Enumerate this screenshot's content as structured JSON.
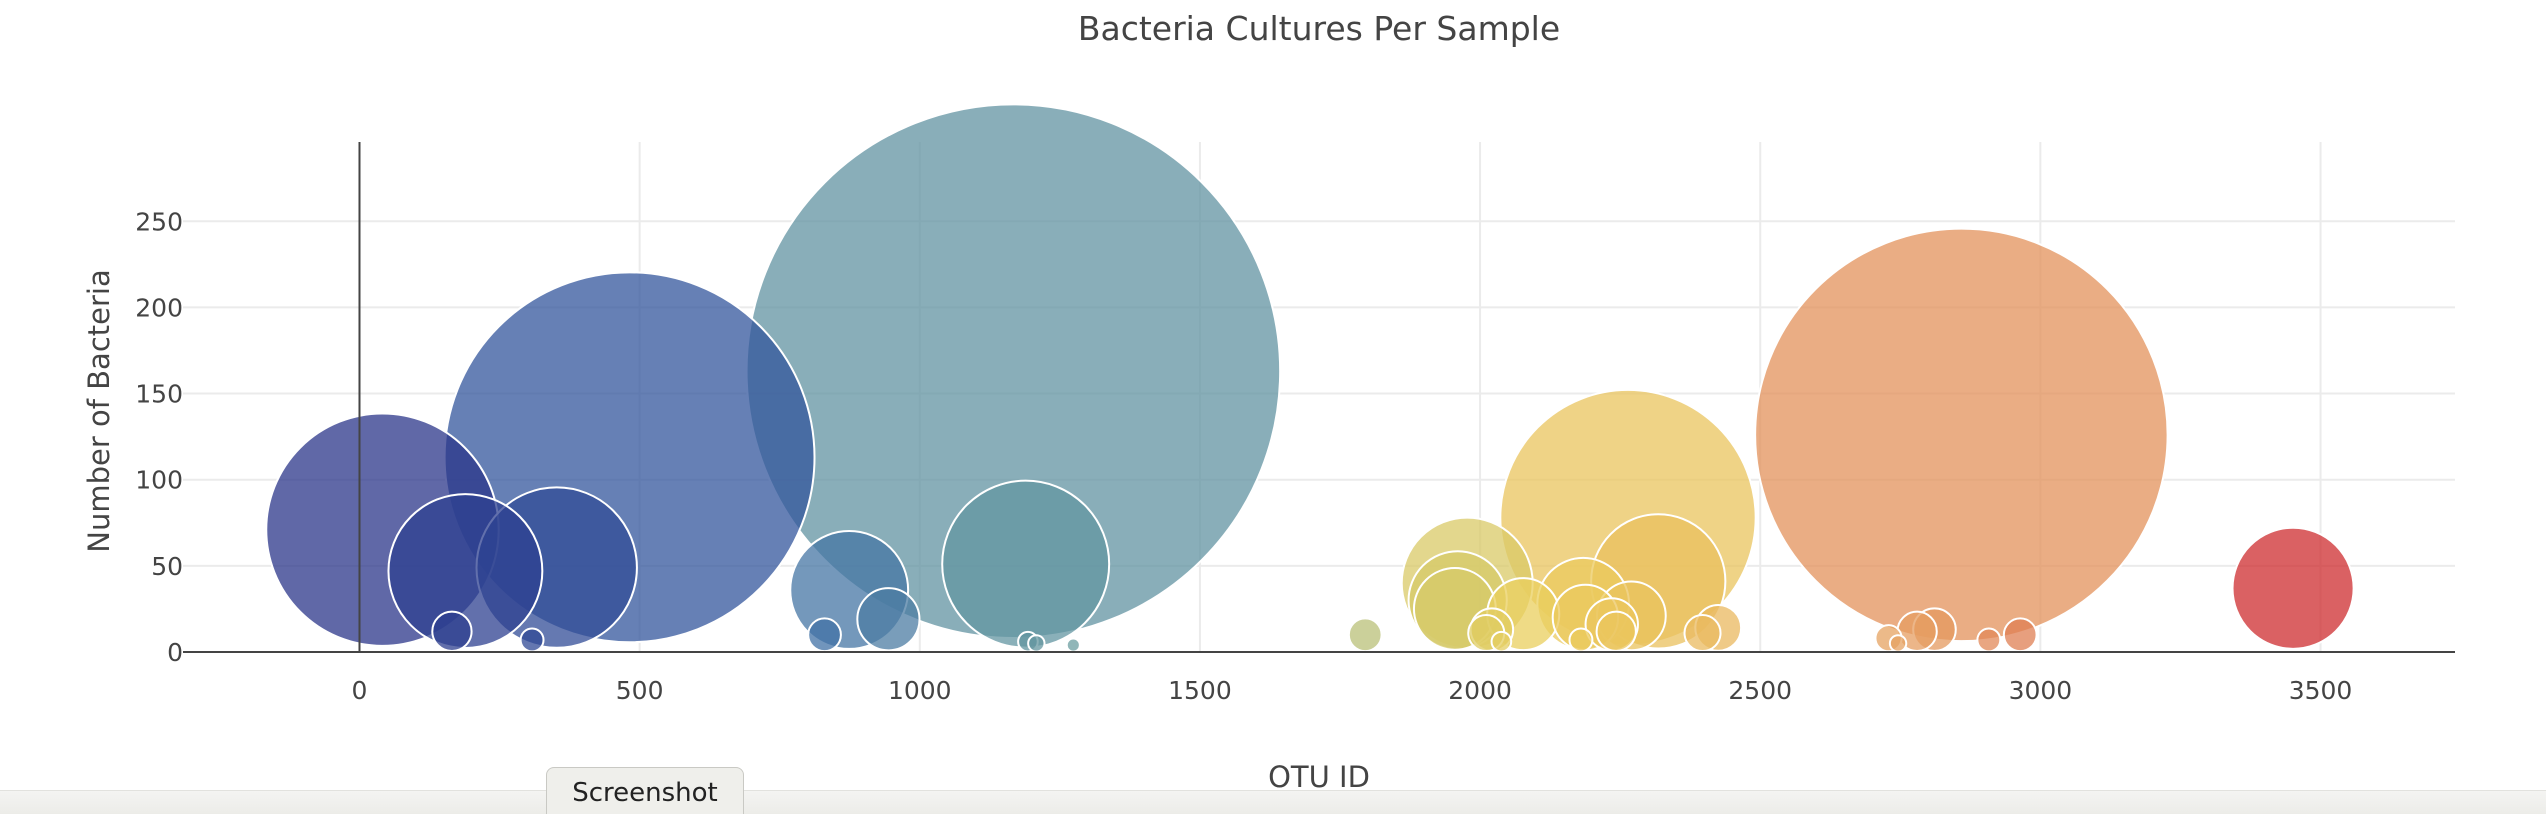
{
  "chart_data": {
    "type": "scatter",
    "title": "Bacteria Cultures Per Sample",
    "xlabel": "OTU ID",
    "ylabel": "Number of Bacteria",
    "xlim": [
      -315,
      3740
    ],
    "ylim": [
      0,
      296
    ],
    "xticks": [
      0,
      500,
      1000,
      1500,
      2000,
      2500,
      3000,
      3500
    ],
    "yticks": [
      0,
      50,
      100,
      150,
      200,
      250
    ],
    "grid": true,
    "legend": "none",
    "color_scale": "Earth",
    "points": [
      {
        "x": 41,
        "y": 71
      },
      {
        "x": 189,
        "y": 47
      },
      {
        "x": 352,
        "y": 49
      },
      {
        "x": 482,
        "y": 113
      },
      {
        "x": 165,
        "y": 12
      },
      {
        "x": 308,
        "y": 7
      },
      {
        "x": 874,
        "y": 36
      },
      {
        "x": 944,
        "y": 19
      },
      {
        "x": 830,
        "y": 10
      },
      {
        "x": 1167,
        "y": 163
      },
      {
        "x": 1189,
        "y": 51
      },
      {
        "x": 1193,
        "y": 6
      },
      {
        "x": 1208,
        "y": 5
      },
      {
        "x": 1274,
        "y": 4
      },
      {
        "x": 1795,
        "y": 10
      },
      {
        "x": 1977,
        "y": 40
      },
      {
        "x": 1960,
        "y": 30
      },
      {
        "x": 1955,
        "y": 25
      },
      {
        "x": 2077,
        "y": 22
      },
      {
        "x": 2011,
        "y": 11
      },
      {
        "x": 2021,
        "y": 13
      },
      {
        "x": 2038,
        "y": 6
      },
      {
        "x": 2184,
        "y": 28
      },
      {
        "x": 2188,
        "y": 20
      },
      {
        "x": 2264,
        "y": 78
      },
      {
        "x": 2318,
        "y": 41
      },
      {
        "x": 2270,
        "y": 21
      },
      {
        "x": 2235,
        "y": 16
      },
      {
        "x": 2243,
        "y": 12
      },
      {
        "x": 2180,
        "y": 7
      },
      {
        "x": 2397,
        "y": 11
      },
      {
        "x": 2425,
        "y": 14
      },
      {
        "x": 2729,
        "y": 8
      },
      {
        "x": 2746,
        "y": 5
      },
      {
        "x": 2780,
        "y": 12
      },
      {
        "x": 2811,
        "y": 13
      },
      {
        "x": 2859,
        "y": 126
      },
      {
        "x": 2908,
        "y": 7
      },
      {
        "x": 2964,
        "y": 10
      },
      {
        "x": 3451,
        "y": 37
      }
    ]
  },
  "colors": {
    "axis": "#444444",
    "grid": "#ebebeb",
    "bubble_outline": "#ffffff"
  },
  "toolbar": {
    "screenshot_label": "Screenshot"
  }
}
